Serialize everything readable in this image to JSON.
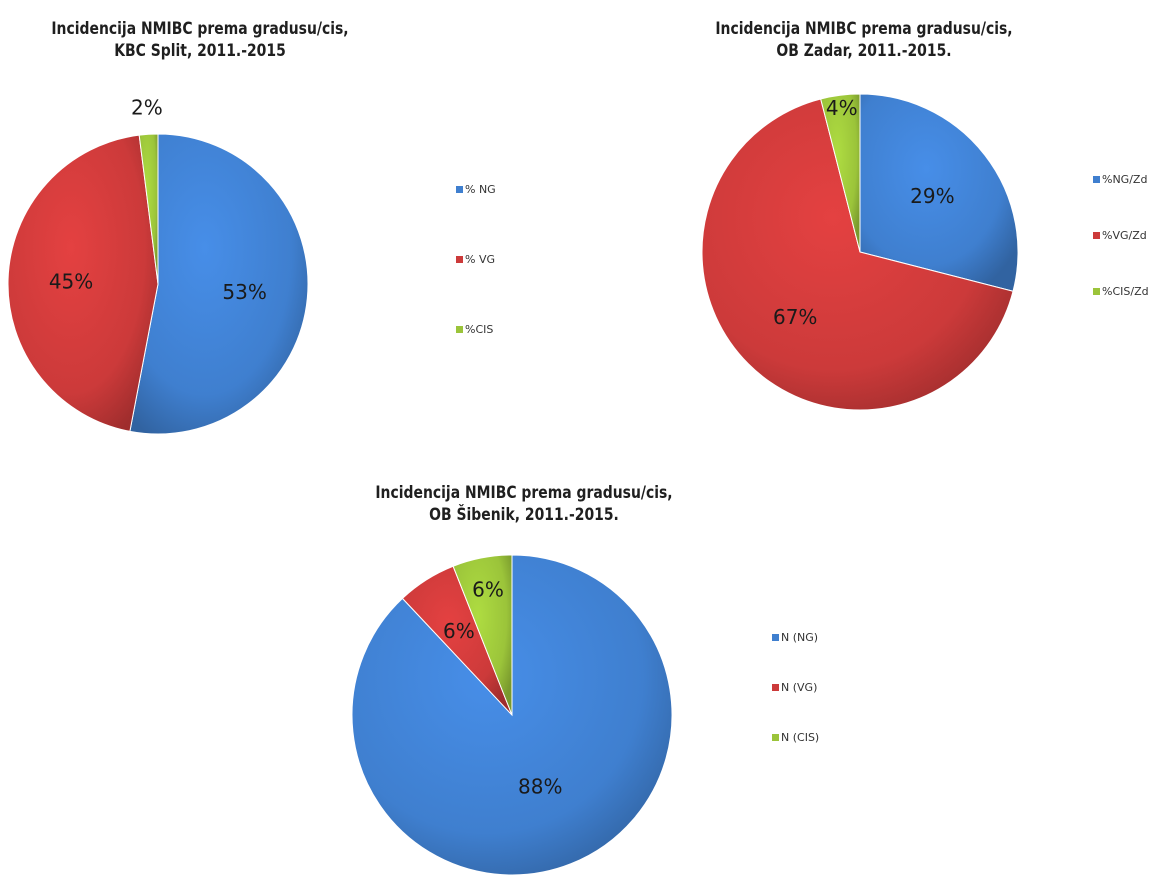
{
  "chart_data": [
    {
      "type": "pie",
      "title": "Incidencija  NMIBC prema gradusu/cis,\nKBC Split, 2011.-2015",
      "categories": [
        "% NG",
        "% VG",
        "%CIS"
      ],
      "values": [
        53,
        45,
        2
      ],
      "labels": [
        "53%",
        "45%",
        "2%"
      ],
      "colors": [
        "#3f7fcf",
        "#cc3a3a",
        "#9bc43a"
      ],
      "legend": "right"
    },
    {
      "type": "pie",
      "title": "Incidencija  NMIBC prema gradusu/cis,\nOB Zadar, 2011.-2015.",
      "categories": [
        "%NG/Zd",
        "%VG/Zd",
        "%CIS/Zd"
      ],
      "values": [
        29,
        67,
        4
      ],
      "labels": [
        "29%",
        "67%",
        "4%"
      ],
      "colors": [
        "#3f7fcf",
        "#cc3a3a",
        "#9bc43a"
      ],
      "legend": "right"
    },
    {
      "type": "pie",
      "title": "Incidencija  NMIBC prema gradusu/cis,\nOB Šibenik, 2011.-2015.",
      "categories": [
        "N (NG)",
        "N (VG)",
        "N (CIS)"
      ],
      "values": [
        88,
        6,
        6
      ],
      "labels": [
        "88%",
        "6%",
        "6%"
      ],
      "colors": [
        "#3f7fcf",
        "#cc3a3a",
        "#9bc43a"
      ],
      "legend": "right"
    }
  ]
}
